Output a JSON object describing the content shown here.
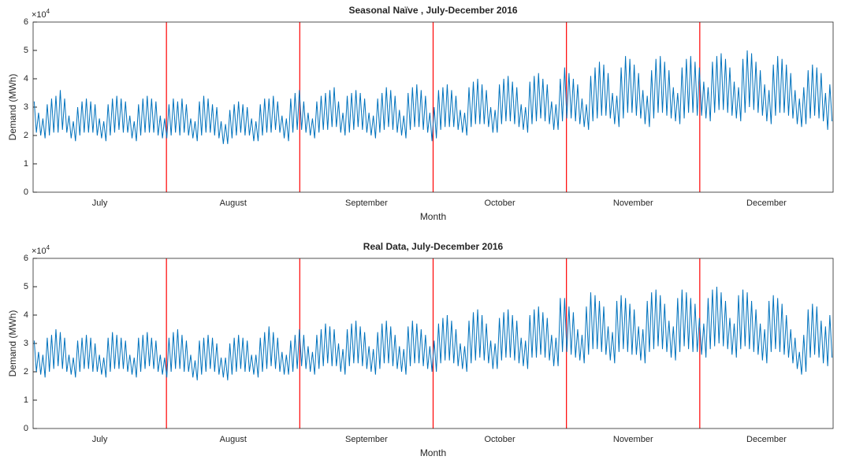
{
  "chart_data": [
    {
      "type": "line",
      "title": "Seasonal Naïve , July-December 2016",
      "xlabel": "Month",
      "ylabel": "Demand (MWh)",
      "y_scale_label": "×10",
      "y_scale_exponent": "4",
      "color": "#0072bd",
      "divider_color": "#ff0000",
      "months": [
        "July",
        "August",
        "September",
        "October",
        "November",
        "December"
      ],
      "ylim": [
        0,
        6
      ],
      "yticks": [
        0,
        1,
        2,
        3,
        4,
        5,
        6
      ],
      "values": [
        3.2,
        2.1,
        2.8,
        2.0,
        2.6,
        1.9,
        3.1,
        2.0,
        3.3,
        2.1,
        3.4,
        2.1,
        3.6,
        2.2,
        3.3,
        2.1,
        2.7,
        1.9,
        2.5,
        1.8,
        3.0,
        2.0,
        3.2,
        2.1,
        3.3,
        2.1,
        3.2,
        2.1,
        3.1,
        2.0,
        2.6,
        1.9,
        2.5,
        1.8,
        3.1,
        2.0,
        3.3,
        2.1,
        3.4,
        2.2,
        3.3,
        2.1,
        3.2,
        2.1,
        2.7,
        1.9,
        2.5,
        1.8,
        3.1,
        2.0,
        3.3,
        2.1,
        3.4,
        2.1,
        3.3,
        2.1,
        3.2,
        2.0,
        2.7,
        1.9,
        2.6,
        1.9,
        3.1,
        2.0,
        3.3,
        2.1,
        3.2,
        2.0,
        3.3,
        2.1,
        3.1,
        2.0,
        2.6,
        1.9,
        2.5,
        1.8,
        3.2,
        2.0,
        3.4,
        2.1,
        3.3,
        2.1,
        3.1,
        2.0,
        3.0,
        1.9,
        2.5,
        1.7,
        2.4,
        1.7,
        2.9,
        1.9,
        3.1,
        2.0,
        3.2,
        2.1,
        3.1,
        2.0,
        3.0,
        2.0,
        2.6,
        1.8,
        2.5,
        1.8,
        3.1,
        2.0,
        3.3,
        2.1,
        3.3,
        2.1,
        3.4,
        2.2,
        3.2,
        2.1,
        2.7,
        1.9,
        2.6,
        1.8,
        3.3,
        2.1,
        3.5,
        2.2,
        3.6,
        2.2,
        3.2,
        2.1,
        2.8,
        2.0,
        2.6,
        1.9,
        3.2,
        2.1,
        3.4,
        2.2,
        3.5,
        2.2,
        3.6,
        2.3,
        3.7,
        2.3,
        3.2,
        2.1,
        2.8,
        2.0,
        3.4,
        2.1,
        3.5,
        2.2,
        3.6,
        2.3,
        3.5,
        2.2,
        3.3,
        2.1,
        2.8,
        2.0,
        2.7,
        1.9,
        3.3,
        2.1,
        3.5,
        2.2,
        3.7,
        2.3,
        3.6,
        2.2,
        3.4,
        2.1,
        2.9,
        2.0,
        2.7,
        1.9,
        3.5,
        2.2,
        3.7,
        2.3,
        3.8,
        2.3,
        3.6,
        2.2,
        3.4,
        2.1,
        2.8,
        1.8,
        3.0,
        1.9,
        3.6,
        2.2,
        3.7,
        2.3,
        3.8,
        2.3,
        3.6,
        2.3,
        3.4,
        2.2,
        2.9,
        2.1,
        2.8,
        2.0,
        3.7,
        2.3,
        3.9,
        2.4,
        4.0,
        2.4,
        3.8,
        2.4,
        3.6,
        2.3,
        3.0,
        2.1,
        2.9,
        2.1,
        3.8,
        2.4,
        4.0,
        2.5,
        4.1,
        2.5,
        3.9,
        2.4,
        3.7,
        2.3,
        3.1,
        2.2,
        3.0,
        2.1,
        3.9,
        2.4,
        4.1,
        2.5,
        4.2,
        2.6,
        4.0,
        2.5,
        3.8,
        2.4,
        3.2,
        2.2,
        3.1,
        2.2,
        4.0,
        2.5,
        4.4,
        2.6,
        4.2,
        2.6,
        4.0,
        2.5,
        3.8,
        2.4,
        3.3,
        2.3,
        3.1,
        2.2,
        4.1,
        2.5,
        4.4,
        2.6,
        4.6,
        2.7,
        4.5,
        2.7,
        4.2,
        2.6,
        3.5,
        2.4,
        3.4,
        2.3,
        4.4,
        2.6,
        4.8,
        2.8,
        4.7,
        2.8,
        4.5,
        2.7,
        4.2,
        2.6,
        3.6,
        2.4,
        3.4,
        2.3,
        4.3,
        2.6,
        4.7,
        2.8,
        4.8,
        2.8,
        4.6,
        2.7,
        4.3,
        2.6,
        3.7,
        2.5,
        3.5,
        2.4,
        4.4,
        2.6,
        4.7,
        2.8,
        4.8,
        2.8,
        4.6,
        2.7,
        4.4,
        2.7,
        3.9,
        2.6,
        3.7,
        2.5,
        4.6,
        2.8,
        4.8,
        2.9,
        4.9,
        2.9,
        4.7,
        2.8,
        4.4,
        2.7,
        3.9,
        2.6,
        3.7,
        2.5,
        4.7,
        2.8,
        5.0,
        3.0,
        4.9,
        2.9,
        4.6,
        2.8,
        4.3,
        2.7,
        3.8,
        2.5,
        3.6,
        2.4,
        4.5,
        2.7,
        4.8,
        2.8,
        4.7,
        2.8,
        4.5,
        2.7,
        4.2,
        2.6,
        3.6,
        2.4,
        3.3,
        2.3,
        3.7,
        2.4,
        4.3,
        2.6,
        4.5,
        2.7,
        4.4,
        2.6,
        4.2,
        2.5,
        3.5,
        2.2,
        3.8,
        2.5
      ]
    },
    {
      "type": "line",
      "title": "Real Data, July-December 2016",
      "xlabel": "Month",
      "ylabel": "Demand (MWh)",
      "y_scale_label": "×10",
      "y_scale_exponent": "4",
      "color": "#0072bd",
      "divider_color": "#ff0000",
      "months": [
        "July",
        "August",
        "September",
        "October",
        "November",
        "December"
      ],
      "ylim": [
        0,
        6
      ],
      "yticks": [
        0,
        1,
        2,
        3,
        4,
        5,
        6
      ],
      "values": [
        3.1,
        2.0,
        2.7,
        1.9,
        2.6,
        1.8,
        3.2,
        2.0,
        3.3,
        2.1,
        3.5,
        2.2,
        3.4,
        2.1,
        3.2,
        2.0,
        2.6,
        1.9,
        2.5,
        1.8,
        3.1,
        2.0,
        3.2,
        2.1,
        3.3,
        2.1,
        3.2,
        2.0,
        3.0,
        2.0,
        2.6,
        1.9,
        2.5,
        1.8,
        3.2,
        2.0,
        3.4,
        2.1,
        3.3,
        2.1,
        3.2,
        2.1,
        3.1,
        2.0,
        2.6,
        1.9,
        2.5,
        1.8,
        3.2,
        2.0,
        3.3,
        2.1,
        3.4,
        2.2,
        3.2,
        2.1,
        3.1,
        2.0,
        2.6,
        1.9,
        2.5,
        1.8,
        3.2,
        2.0,
        3.4,
        2.1,
        3.5,
        2.1,
        3.3,
        2.0,
        3.1,
        2.0,
        2.6,
        1.8,
        2.4,
        1.7,
        3.1,
        1.9,
        3.2,
        2.0,
        3.3,
        2.1,
        3.2,
        2.0,
        3.0,
        1.9,
        2.5,
        1.8,
        2.5,
        1.7,
        3.0,
        1.9,
        3.2,
        2.0,
        3.3,
        2.1,
        3.2,
        2.0,
        3.1,
        2.0,
        2.6,
        1.9,
        2.6,
        1.8,
        3.2,
        2.0,
        3.4,
        2.1,
        3.6,
        2.2,
        3.4,
        2.1,
        3.2,
        2.0,
        2.7,
        1.9,
        2.6,
        1.9,
        3.1,
        2.0,
        3.3,
        2.1,
        3.5,
        2.2,
        3.3,
        2.1,
        2.9,
        2.0,
        2.7,
        1.9,
        3.3,
        2.1,
        3.5,
        2.2,
        3.7,
        2.3,
        3.6,
        2.2,
        3.5,
        2.2,
        3.0,
        2.0,
        2.8,
        1.9,
        3.5,
        2.2,
        3.7,
        2.3,
        3.8,
        2.3,
        3.6,
        2.2,
        3.4,
        2.1,
        2.9,
        2.0,
        2.8,
        1.9,
        3.4,
        2.1,
        3.7,
        2.3,
        3.8,
        2.3,
        3.6,
        2.2,
        3.3,
        2.1,
        2.9,
        2.0,
        2.8,
        1.9,
        3.6,
        2.2,
        3.8,
        2.3,
        3.7,
        2.3,
        3.5,
        2.2,
        3.3,
        2.1,
        2.9,
        2.0,
        3.1,
        2.0,
        3.7,
        2.3,
        3.9,
        2.4,
        4.0,
        2.4,
        3.8,
        2.3,
        3.5,
        2.2,
        3.0,
        2.1,
        2.9,
        2.0,
        3.8,
        2.3,
        4.1,
        2.4,
        4.2,
        2.5,
        4.0,
        2.4,
        3.7,
        2.3,
        3.1,
        2.1,
        3.0,
        2.1,
        3.9,
        2.4,
        4.1,
        2.5,
        4.2,
        2.5,
        4.0,
        2.4,
        3.8,
        2.3,
        3.2,
        2.2,
        3.1,
        2.1,
        4.0,
        2.5,
        4.2,
        2.5,
        4.3,
        2.6,
        4.1,
        2.5,
        3.9,
        2.4,
        3.3,
        2.2,
        3.2,
        2.2,
        4.6,
        2.7,
        4.6,
        2.7,
        4.3,
        2.6,
        4.1,
        2.5,
        3.5,
        2.4,
        3.3,
        2.3,
        4.3,
        2.6,
        4.8,
        2.8,
        4.7,
        2.8,
        4.5,
        2.7,
        4.3,
        2.6,
        3.6,
        2.4,
        3.4,
        2.3,
        4.5,
        2.7,
        4.7,
        2.8,
        4.6,
        2.7,
        4.4,
        2.6,
        4.2,
        2.6,
        3.6,
        2.4,
        3.5,
        2.3,
        4.5,
        2.7,
        4.8,
        2.8,
        4.9,
        2.9,
        4.7,
        2.8,
        4.4,
        2.7,
        3.8,
        2.5,
        3.6,
        2.4,
        4.6,
        2.7,
        4.9,
        2.9,
        4.8,
        2.8,
        4.6,
        2.7,
        4.4,
        2.7,
        3.9,
        2.6,
        3.7,
        2.5,
        4.6,
        2.8,
        4.9,
        2.9,
        5.0,
        3.0,
        4.8,
        2.9,
        4.5,
        2.8,
        3.9,
        2.6,
        3.7,
        2.5,
        4.7,
        2.8,
        4.9,
        2.9,
        4.8,
        2.8,
        4.5,
        2.7,
        4.2,
        2.6,
        3.7,
        2.4,
        3.5,
        2.3,
        4.5,
        2.7,
        4.7,
        2.8,
        4.6,
        2.7,
        4.4,
        2.6,
        4.0,
        2.5,
        3.5,
        2.3,
        3.2,
        2.1,
        2.7,
        1.9,
        3.3,
        2.0,
        4.2,
        2.5,
        4.4,
        2.6,
        4.3,
        2.5,
        3.8,
        2.3,
        3.6,
        2.2,
        4.0,
        2.5
      ]
    }
  ]
}
